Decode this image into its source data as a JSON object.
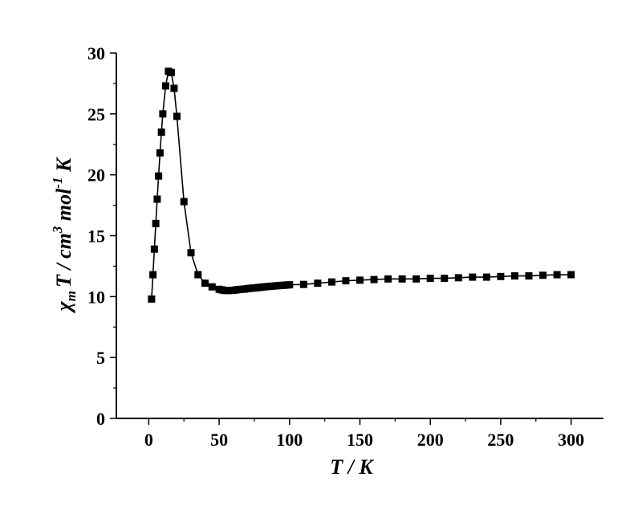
{
  "chart_data": {
    "type": "line",
    "title": "",
    "xlabel": {
      "main": "T / K"
    },
    "ylabel": {
      "chi": "χ",
      "chi_sub": "m",
      "middle": "T / cm",
      "cm_sup": "3",
      "mol": " mol",
      "mol_sup": "-1",
      "end": " K"
    },
    "xlim": [
      -23,
      323
    ],
    "ylim": [
      0,
      30
    ],
    "xticks": [
      0,
      50,
      100,
      150,
      200,
      250,
      300
    ],
    "yticks": [
      0,
      5,
      10,
      15,
      20,
      25,
      30
    ],
    "xtick_labels": [
      "0",
      "50",
      "100",
      "150",
      "200",
      "250",
      "300"
    ],
    "ytick_labels": [
      "0",
      "5",
      "10",
      "15",
      "20",
      "25",
      "30"
    ],
    "grid": false,
    "marker": "square",
    "line_style": "solid",
    "color": "#000000",
    "series": [
      {
        "x": [
          2,
          3,
          4,
          5,
          6,
          7,
          8,
          9,
          10,
          12,
          14,
          16,
          18,
          20,
          25,
          30,
          35,
          40,
          45,
          50,
          52,
          54,
          56,
          58,
          60,
          62,
          64,
          66,
          68,
          70,
          72,
          74,
          76,
          78,
          80,
          82,
          84,
          86,
          88,
          90,
          92,
          94,
          96,
          98,
          100,
          110,
          120,
          130,
          140,
          150,
          160,
          170,
          180,
          190,
          200,
          210,
          220,
          230,
          240,
          250,
          260,
          270,
          280,
          290,
          300
        ],
        "y": [
          9.8,
          11.8,
          13.9,
          16.0,
          18.0,
          19.9,
          21.8,
          23.5,
          25.0,
          27.3,
          28.5,
          28.4,
          27.1,
          24.8,
          17.8,
          13.6,
          11.8,
          11.1,
          10.8,
          10.6,
          10.55,
          10.5,
          10.5,
          10.5,
          10.52,
          10.55,
          10.58,
          10.6,
          10.62,
          10.65,
          10.68,
          10.7,
          10.72,
          10.75,
          10.77,
          10.8,
          10.82,
          10.84,
          10.86,
          10.88,
          10.9,
          10.92,
          10.93,
          10.95,
          10.97,
          11.0,
          11.1,
          11.2,
          11.3,
          11.35,
          11.4,
          11.45,
          11.45,
          11.45,
          11.5,
          11.5,
          11.55,
          11.6,
          11.6,
          11.65,
          11.7,
          11.7,
          11.75,
          11.8,
          11.8
        ]
      }
    ]
  }
}
